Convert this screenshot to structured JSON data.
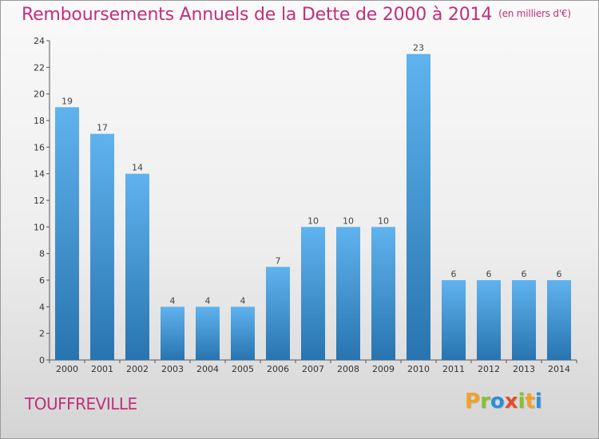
{
  "title": "Remboursements Annuels de la Dette de 2000 à 2014",
  "unit": "(en milliers d'€)",
  "commune": "TOUFFREVILLE",
  "logo": "Proxiti",
  "colors": {
    "title": "#c0307a",
    "bar_light": "#5aaeea",
    "bar_dark": "#2a79b5",
    "axis": "#555555"
  },
  "chart_data": {
    "type": "bar",
    "title": "Remboursements Annuels de la Dette de 2000 à 2014",
    "subtitle": "(en milliers d'€)",
    "categories": [
      "2000",
      "2001",
      "2002",
      "2003",
      "2004",
      "2005",
      "2006",
      "2007",
      "2008",
      "2009",
      "2010",
      "2011",
      "2012",
      "2013",
      "2014"
    ],
    "values": [
      19,
      17,
      14,
      4,
      4,
      4,
      7,
      10,
      10,
      10,
      23,
      6,
      6,
      6,
      6
    ],
    "ylim": [
      0,
      24
    ],
    "yticks": [
      0,
      2,
      4,
      6,
      8,
      10,
      12,
      14,
      16,
      18,
      20,
      22,
      24
    ],
    "xlabel": "",
    "ylabel": "",
    "grid": false,
    "data_labels": true
  }
}
